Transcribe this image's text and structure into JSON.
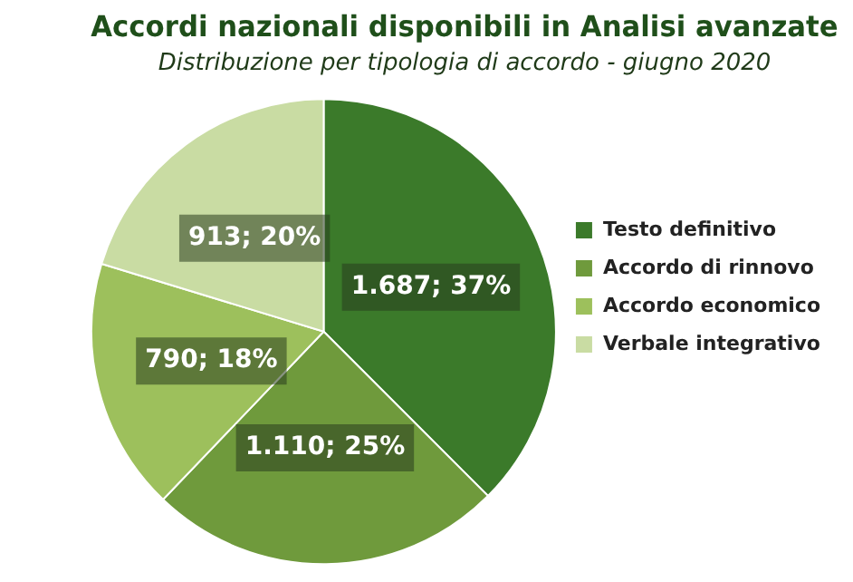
{
  "chart_data": {
    "type": "pie",
    "title": "Accordi nazionali disponibili in Analisi avanzate",
    "subtitle": "Distribuzione per tipologia di accordo - giugno 2020",
    "categories": [
      "Testo definitivo",
      "Accordo di rinnovo",
      "Accordo economico",
      "Verbale integrativo"
    ],
    "values": [
      1687,
      1110,
      790,
      913
    ],
    "colors": [
      "#3b7a2a",
      "#6f9a3c",
      "#9dc05c",
      "#c9dca3"
    ],
    "value_labels": [
      "1.687; 37%",
      "1.110; 25%",
      "790; 18%",
      "913; 20%"
    ],
    "legend": "right"
  }
}
